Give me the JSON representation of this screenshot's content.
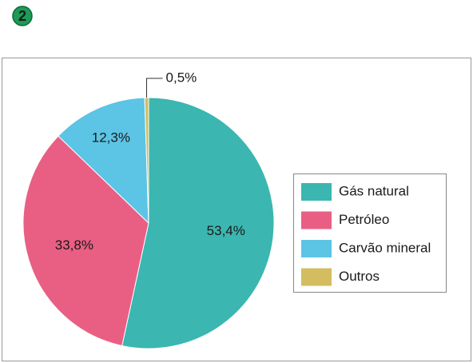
{
  "badge": "2",
  "chart_data": {
    "type": "pie",
    "categories": [
      "Gás natural",
      "Petróleo",
      "Carvão mineral",
      "Outros"
    ],
    "values": [
      53.4,
      33.8,
      12.3,
      0.5
    ],
    "value_labels": [
      "53,4%",
      "33,8%",
      "12,3%",
      "0,5%"
    ],
    "colors": [
      "#3bb6b0",
      "#e95f83",
      "#5cc4e5",
      "#d3bd60"
    ],
    "legend": "right"
  }
}
